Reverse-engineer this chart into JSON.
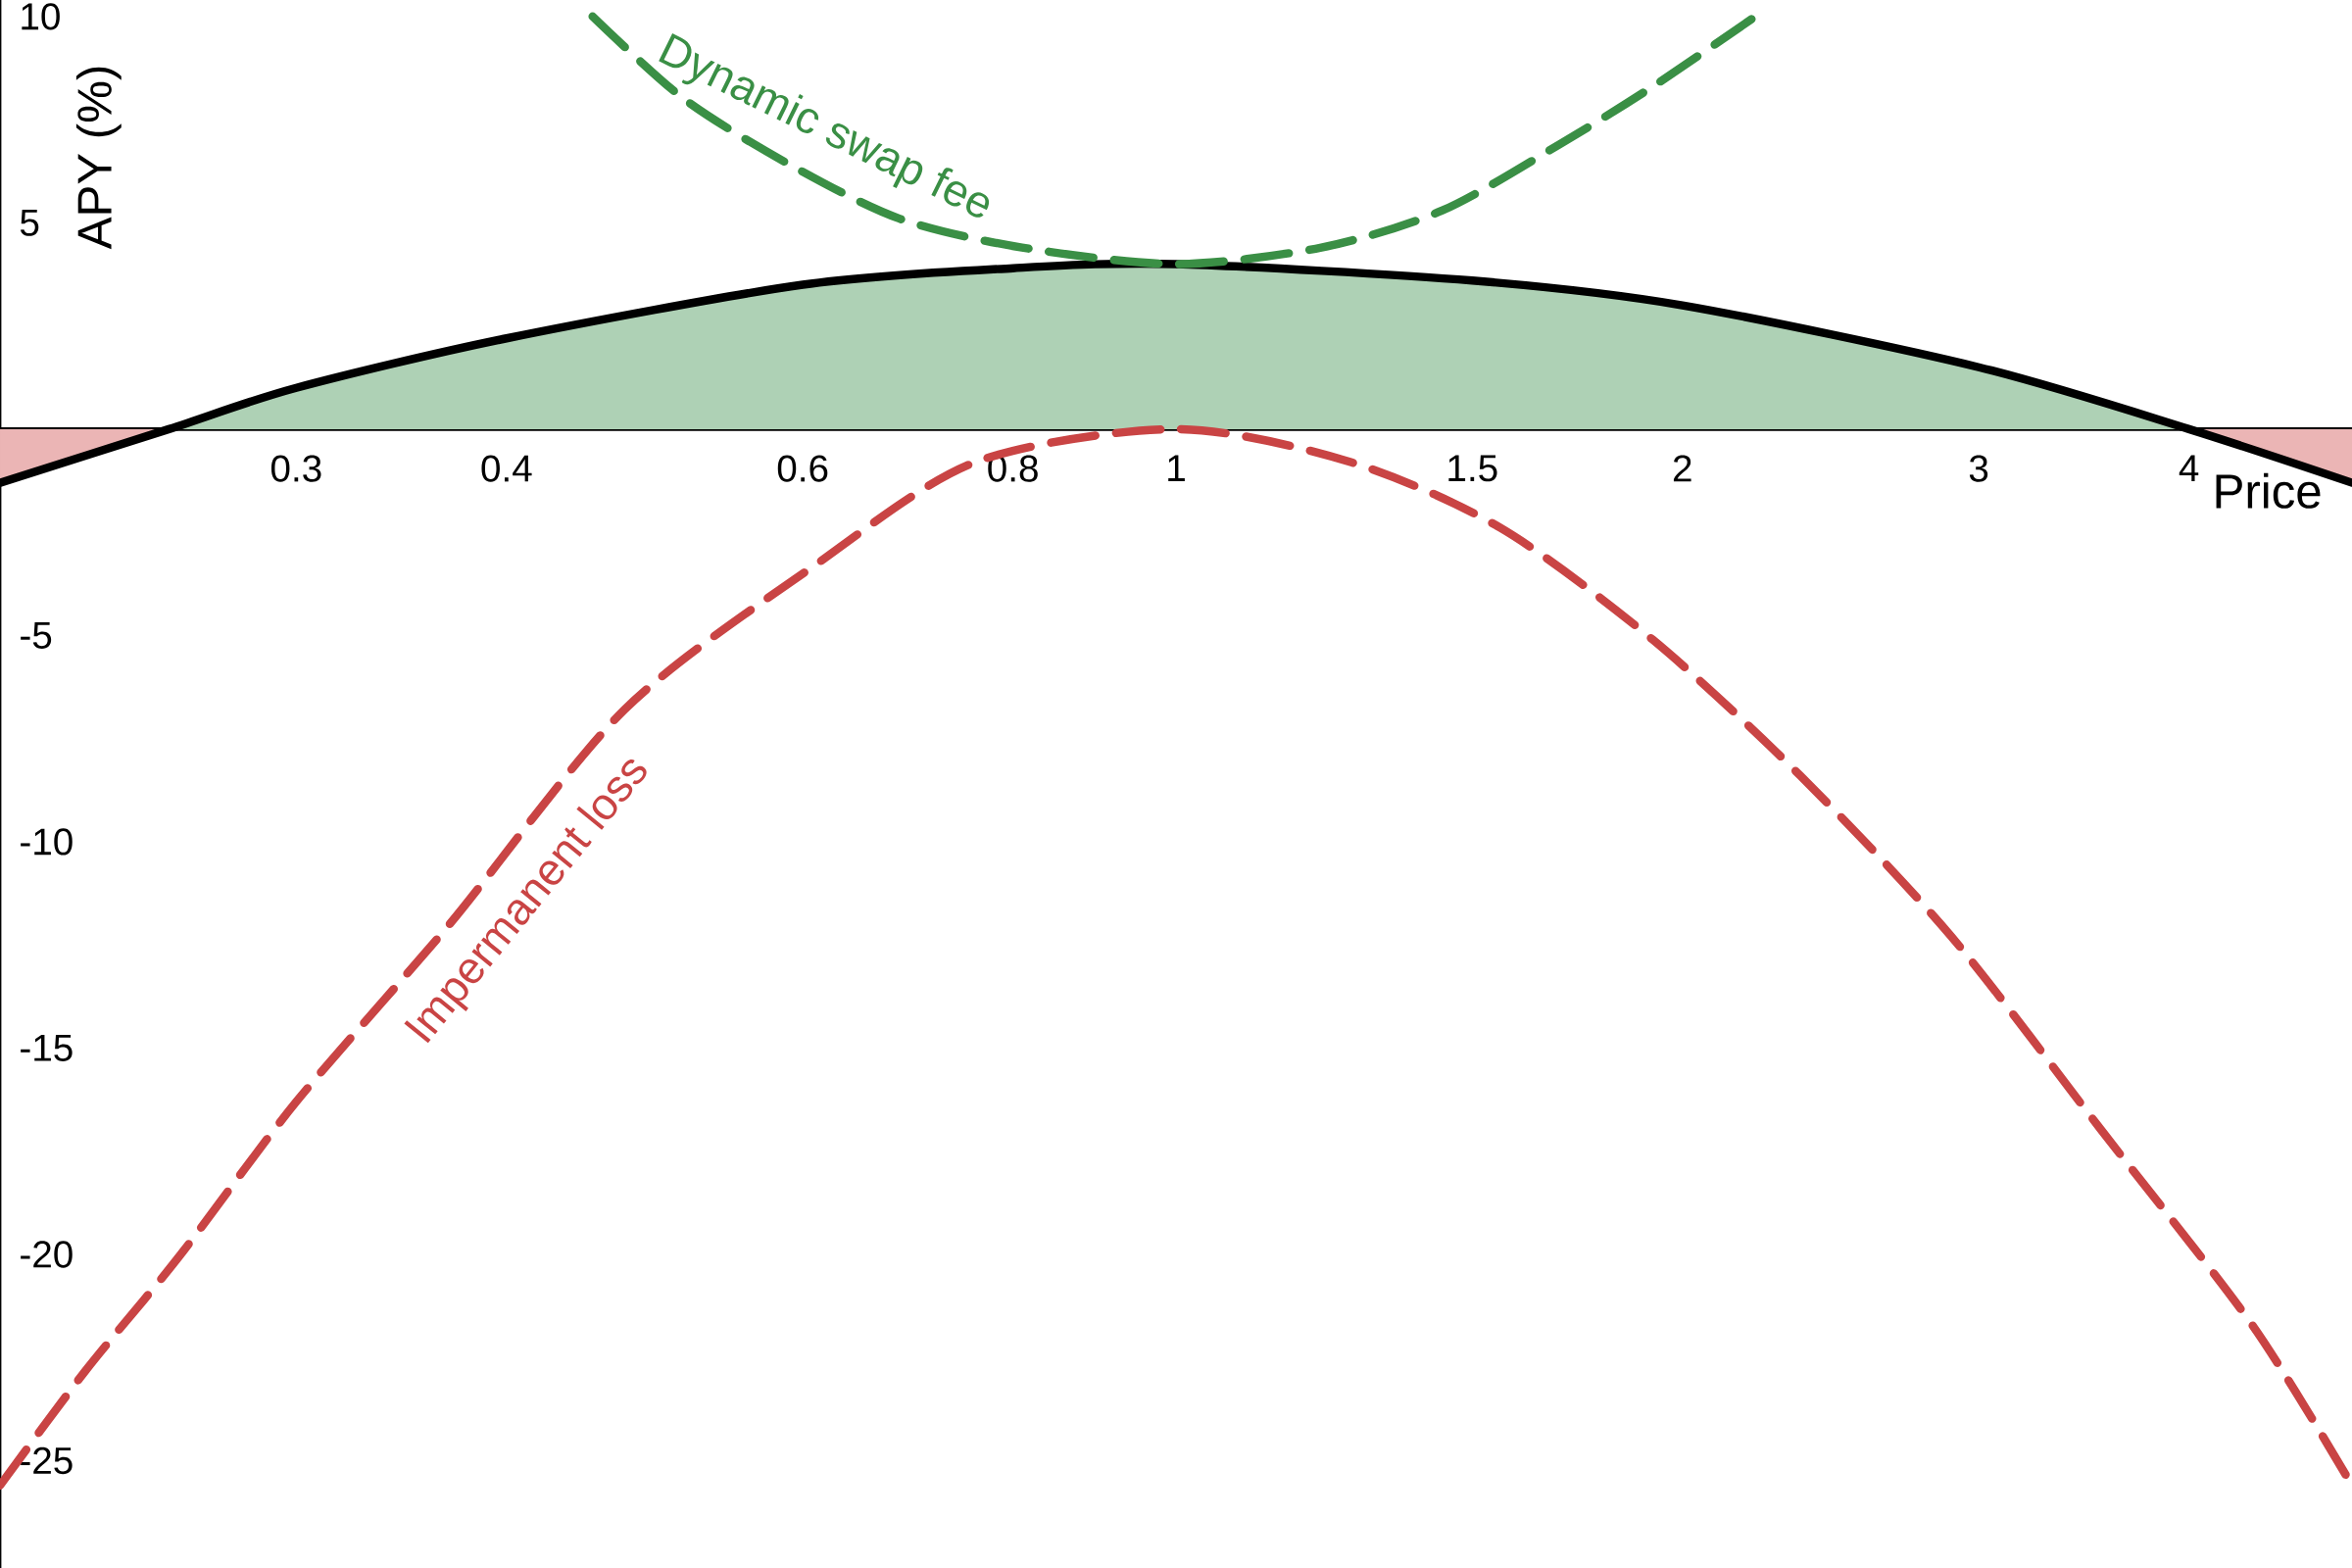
{
  "chart_data": {
    "type": "line",
    "xlabel": "Price",
    "ylabel": "APY (%)",
    "log": "x",
    "xlim": [
      0.2,
      5
    ],
    "ylim": [
      -27.6,
      10.4
    ],
    "xticks": [
      0.3,
      0.4,
      0.6,
      0.8,
      1,
      1.5,
      2,
      3,
      4
    ],
    "yticks": [
      -25,
      -20,
      -15,
      -10,
      -5,
      5,
      10
    ],
    "marker": "none",
    "series": [
      {
        "type": "area",
        "color": "#aed1b5",
        "x": [
          0.252,
          0.3,
          0.4,
          0.6,
          0.8,
          1,
          1.5,
          2,
          3,
          4
        ],
        "values": [
          0,
          1.0,
          2.2,
          3.5,
          3.9,
          4.0,
          3.6,
          3.0,
          1.5,
          0
        ]
      },
      {
        "type": "area",
        "color": "#ebb5b5",
        "x": [
          0.2,
          0.252,
          4,
          5
        ],
        "values": [
          -1.3,
          0,
          0,
          -1.3
        ]
      },
      {
        "type": "line",
        "color": "#000000",
        "line_style": "solid",
        "x": [
          0.2,
          0.252,
          0.3,
          0.4,
          0.6,
          0.8,
          1,
          1.5,
          2,
          3,
          4,
          5
        ],
        "values": [
          -1.3,
          0,
          1.0,
          2.2,
          3.5,
          3.9,
          4.0,
          3.6,
          3.0,
          1.5,
          0,
          -1.3
        ]
      },
      {
        "type": "line",
        "name": "Dynamic swap fee",
        "color": "#3a8f45",
        "line_style": "dashed",
        "x": [
          0.45,
          0.51,
          0.59,
          0.685,
          0.81,
          1,
          1.22,
          1.44,
          1.69,
          1.92,
          2.21
        ],
        "values": [
          10.0,
          8.0,
          6.4,
          5.1,
          4.4,
          4.0,
          4.4,
          5.3,
          6.9,
          8.3,
          10.0
        ]
      },
      {
        "type": "line",
        "name": "Impermanent loss",
        "color": "#c94444",
        "line_style": "dashed",
        "x": [
          0.2,
          0.225,
          0.255,
          0.3,
          0.37,
          0.47,
          0.61,
          0.76,
          1,
          1.27,
          1.56,
          1.92,
          2.35,
          2.89,
          3.55,
          4.36,
          5
        ],
        "values": [
          -25.6,
          -22.8,
          -20.1,
          -16.3,
          -12.0,
          -6.8,
          -3.3,
          -0.8,
          0,
          -0.8,
          -2.4,
          -5.1,
          -8.4,
          -12.3,
          -17.0,
          -21.7,
          -25.6
        ]
      }
    ]
  }
}
